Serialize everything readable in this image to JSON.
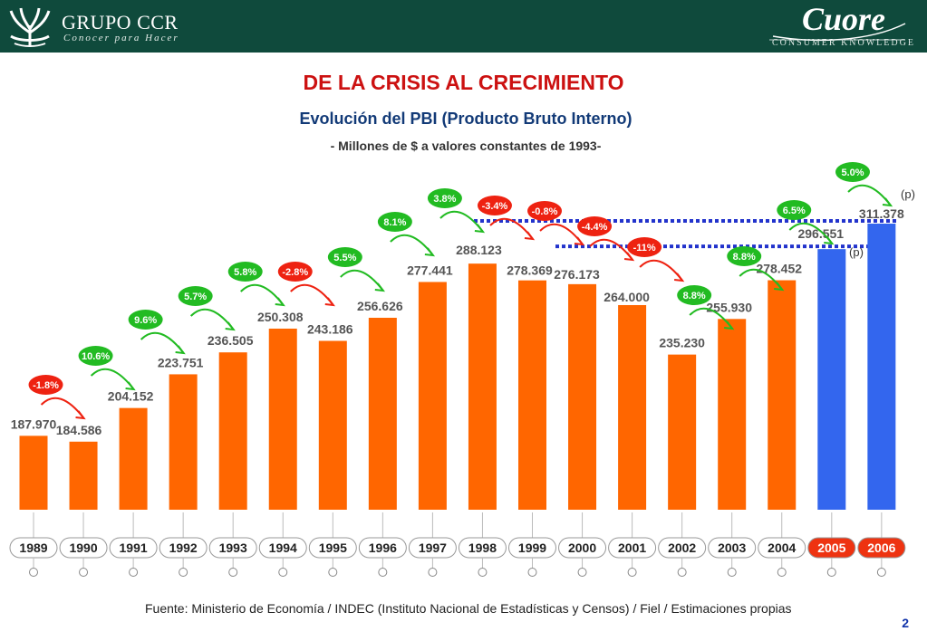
{
  "header": {
    "brand_name": "GRUPO CCR",
    "brand_tagline": "Conocer para Hacer",
    "partner_name": "Cuore",
    "partner_tagline": "CONSUMER KNOWLEDGE",
    "background_color": "#0f4a3c"
  },
  "title": "DE LA CRISIS AL CRECIMIENTO",
  "subtitle": "Evolución del PBI (Producto Bruto Interno)",
  "subtitle2": "- Millones de $ a valores constantes de 1993-",
  "chart_data": {
    "type": "bar",
    "categories": [
      "1989",
      "1990",
      "1991",
      "1992",
      "1993",
      "1994",
      "1995",
      "1996",
      "1997",
      "1998",
      "1999",
      "2000",
      "2001",
      "2002",
      "2003",
      "2004",
      "2005",
      "2006"
    ],
    "values": [
      187970,
      184586,
      204152,
      223751,
      236505,
      250308,
      243186,
      256626,
      277441,
      288123,
      278369,
      276173,
      264000,
      235230,
      255930,
      278452,
      296551,
      311378
    ],
    "value_labels": [
      "187.970",
      "184.586",
      "204.152",
      "223.751",
      "236.505",
      "250.308",
      "243.186",
      "256.626",
      "277.441",
      "288.123",
      "278.369",
      "276.173",
      "264.000",
      "235.230",
      "255.930",
      "278.452",
      "296.551",
      "311.378"
    ],
    "projected_marker": "(p)",
    "projected_categories": [
      "2005",
      "2006"
    ],
    "growth_rates": [
      {
        "from": "1989",
        "to": "1990",
        "label": "-1.8%",
        "sign": "negative"
      },
      {
        "from": "1990",
        "to": "1991",
        "label": "10.6%",
        "sign": "positive"
      },
      {
        "from": "1991",
        "to": "1992",
        "label": "9.6%",
        "sign": "positive"
      },
      {
        "from": "1992",
        "to": "1993",
        "label": "5.7%",
        "sign": "positive"
      },
      {
        "from": "1993",
        "to": "1994",
        "label": "5.8%",
        "sign": "positive"
      },
      {
        "from": "1994",
        "to": "1995",
        "label": "-2.8%",
        "sign": "negative"
      },
      {
        "from": "1995",
        "to": "1996",
        "label": "5.5%",
        "sign": "positive"
      },
      {
        "from": "1996",
        "to": "1997",
        "label": "8.1%",
        "sign": "positive"
      },
      {
        "from": "1997",
        "to": "1998",
        "label": "3.8%",
        "sign": "positive"
      },
      {
        "from": "1998",
        "to": "1999",
        "label": "-3.4%",
        "sign": "negative"
      },
      {
        "from": "1999",
        "to": "2000",
        "label": "-0.8%",
        "sign": "negative"
      },
      {
        "from": "2000",
        "to": "2001",
        "label": "-4.4%",
        "sign": "negative"
      },
      {
        "from": "2001",
        "to": "2002",
        "label": "-11%",
        "sign": "negative"
      },
      {
        "from": "2002",
        "to": "2003",
        "label": "8.8%",
        "sign": "positive"
      },
      {
        "from": "2003",
        "to": "2004",
        "label": "8.8%",
        "sign": "positive"
      },
      {
        "from": "2004",
        "to": "2005",
        "label": "6.5%",
        "sign": "positive"
      },
      {
        "from": "2005",
        "to": "2006",
        "label": "5.0%",
        "sign": "positive"
      }
    ],
    "reference_lines": [
      {
        "value": 311378,
        "style": "dotted",
        "color": "#2233cc"
      },
      {
        "value": 296551,
        "style": "dotted",
        "color": "#2233cc"
      }
    ],
    "ylim": [
      145000,
      320000
    ],
    "grid": false,
    "colors": {
      "historic_bar": "#ff6600",
      "projected_bar": "#3366ee",
      "positive_rate": "#22bb22",
      "negative_rate": "#ee2211",
      "value_label": "#555555",
      "year_label": "#222222",
      "projected_year_bg": "#ee3311"
    }
  },
  "source": "Fuente: Ministerio de Economía / INDEC (Instituto Nacional de Estadísticas y Censos) / Fiel / Estimaciones propias",
  "page_number": "2"
}
